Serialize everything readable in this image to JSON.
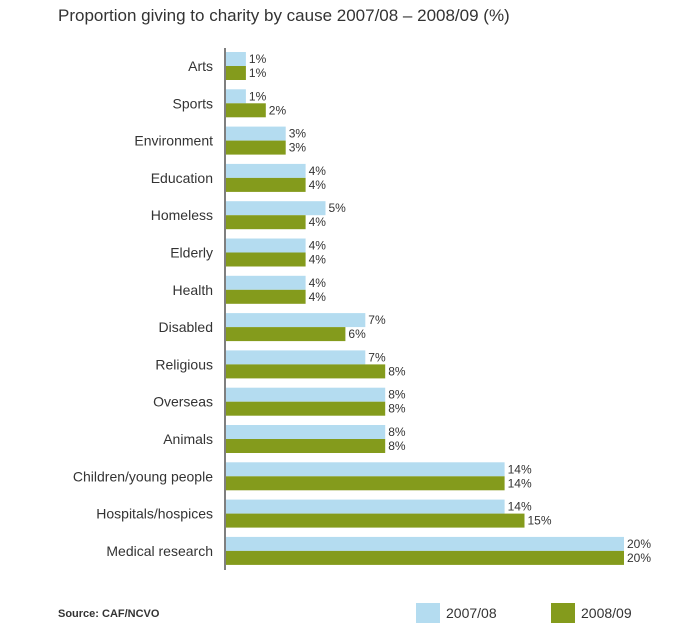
{
  "title": "Proportion giving to charity by cause 2007/08 – 2008/09 (%)",
  "source": "Source: CAF/NCVO",
  "colors": {
    "series_2007": "#b4dcf0",
    "series_2008": "#849b1c",
    "axis": "#555555"
  },
  "legend": [
    {
      "label": "2007/08"
    },
    {
      "label": "2008/09"
    }
  ],
  "chart_data": {
    "type": "bar",
    "orientation": "horizontal",
    "title": "Proportion giving to charity by cause 2007/08 – 2008/09 (%)",
    "value_suffix": "%",
    "categories": [
      "Arts",
      "Sports",
      "Environment",
      "Education",
      "Homeless",
      "Elderly",
      "Health",
      "Disabled",
      "Religious",
      "Overseas",
      "Animals",
      "Children/young people",
      "Hospitals/hospices",
      "Medical research"
    ],
    "series": [
      {
        "name": "2007/08",
        "values": [
          1,
          1,
          3,
          4,
          5,
          4,
          4,
          7,
          7,
          8,
          8,
          14,
          14,
          20
        ]
      },
      {
        "name": "2008/09",
        "values": [
          1,
          2,
          3,
          4,
          4,
          4,
          4,
          6,
          8,
          8,
          8,
          14,
          15,
          20
        ]
      }
    ],
    "xlim": [
      0,
      20
    ],
    "grid": false,
    "legend_position": "bottom-right"
  }
}
